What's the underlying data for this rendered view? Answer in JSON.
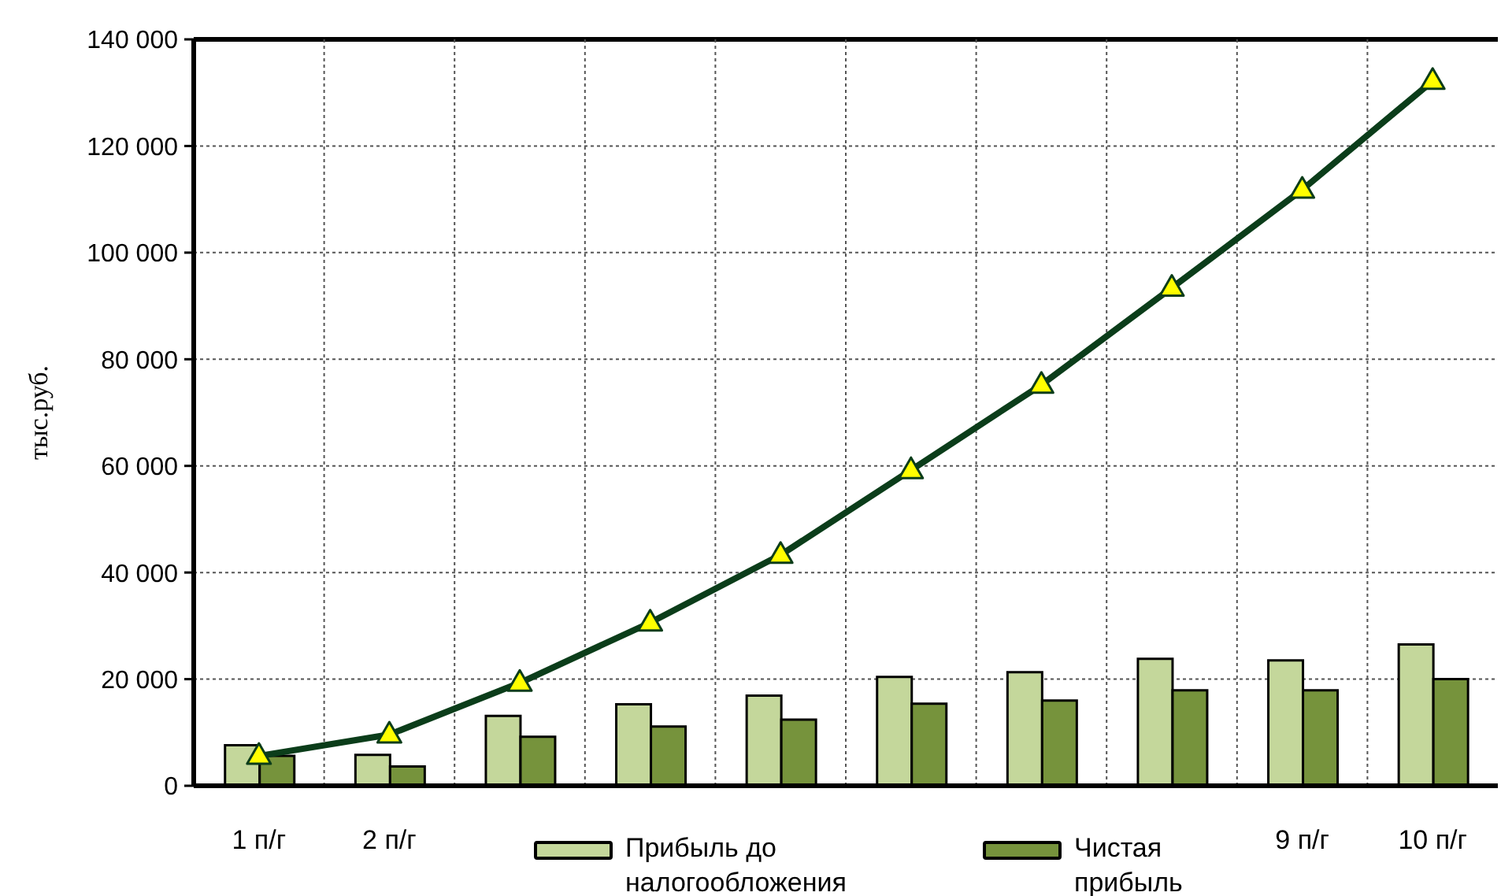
{
  "chart_data": {
    "type": "bar",
    "ylabel": "тыс.руб.",
    "categories": [
      "1 п/г",
      "2 п/г",
      null,
      null,
      null,
      null,
      null,
      null,
      "9 п/г",
      "10 п/г"
    ],
    "series": [
      {
        "name": "Прибыль до налогообложения",
        "color": "#c4d79b",
        "values": [
          7600,
          5800,
          13100,
          15300,
          16900,
          20400,
          21300,
          23800,
          23500,
          26500
        ]
      },
      {
        "name": "Чистая прибыль",
        "color": "#76933c",
        "values": [
          5600,
          3600,
          9200,
          11100,
          12400,
          15400,
          16000,
          17900,
          17900,
          20000
        ]
      },
      {
        "type": "line",
        "color": "#0b3d1a",
        "marker": "triangle",
        "values": [
          5600,
          9600,
          19300,
          30600,
          43300,
          59200,
          75200,
          93400,
          111800,
          132200
        ]
      }
    ],
    "ylim": [
      0,
      140000
    ],
    "yticks": [
      {
        "value": 0,
        "label": "0"
      },
      {
        "value": 20000,
        "label": "20 000"
      },
      {
        "value": 40000,
        "label": "40 000"
      },
      {
        "value": 60000,
        "label": "60 000"
      },
      {
        "value": 80000,
        "label": "80 000"
      },
      {
        "value": 100000,
        "label": "100 000"
      },
      {
        "value": 120000,
        "label": "120 000"
      },
      {
        "value": 140000,
        "label": "140 000"
      }
    ],
    "grid": true,
    "legend": "bottom"
  }
}
